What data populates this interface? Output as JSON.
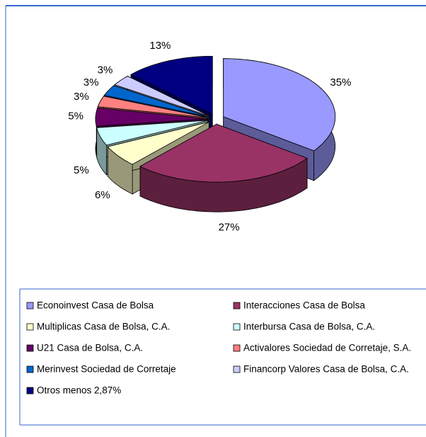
{
  "chart_data": {
    "type": "pie",
    "categories": [
      "Econoinvest Casa de Bolsa",
      "Interacciones Casa de Bolsa",
      "Multiplicas Casa de Bolsa, C.A.",
      "Interbursa Casa de Bolsa, C.A.",
      "U21 Casa de Bolsa, C.A.",
      "Activalores Sociedad de Corretaje, S.A.",
      "Merinvest Sociedad de Corretaje",
      "Financorp Valores Casa de Bolsa, C.A.",
      "Otros menos 2,87%"
    ],
    "values": [
      35,
      27,
      6,
      5,
      5,
      3,
      3,
      3,
      13
    ],
    "value_labels": [
      "35%",
      "27%",
      "6%",
      "5%",
      "5%",
      "3%",
      "3%",
      "3%",
      "13%"
    ],
    "colors": [
      "#9999ff",
      "#993366",
      "#ffffcc",
      "#ccffff",
      "#660066",
      "#ff8080",
      "#0066cc",
      "#ccccff",
      "#000080"
    ],
    "legend": "bottom"
  }
}
